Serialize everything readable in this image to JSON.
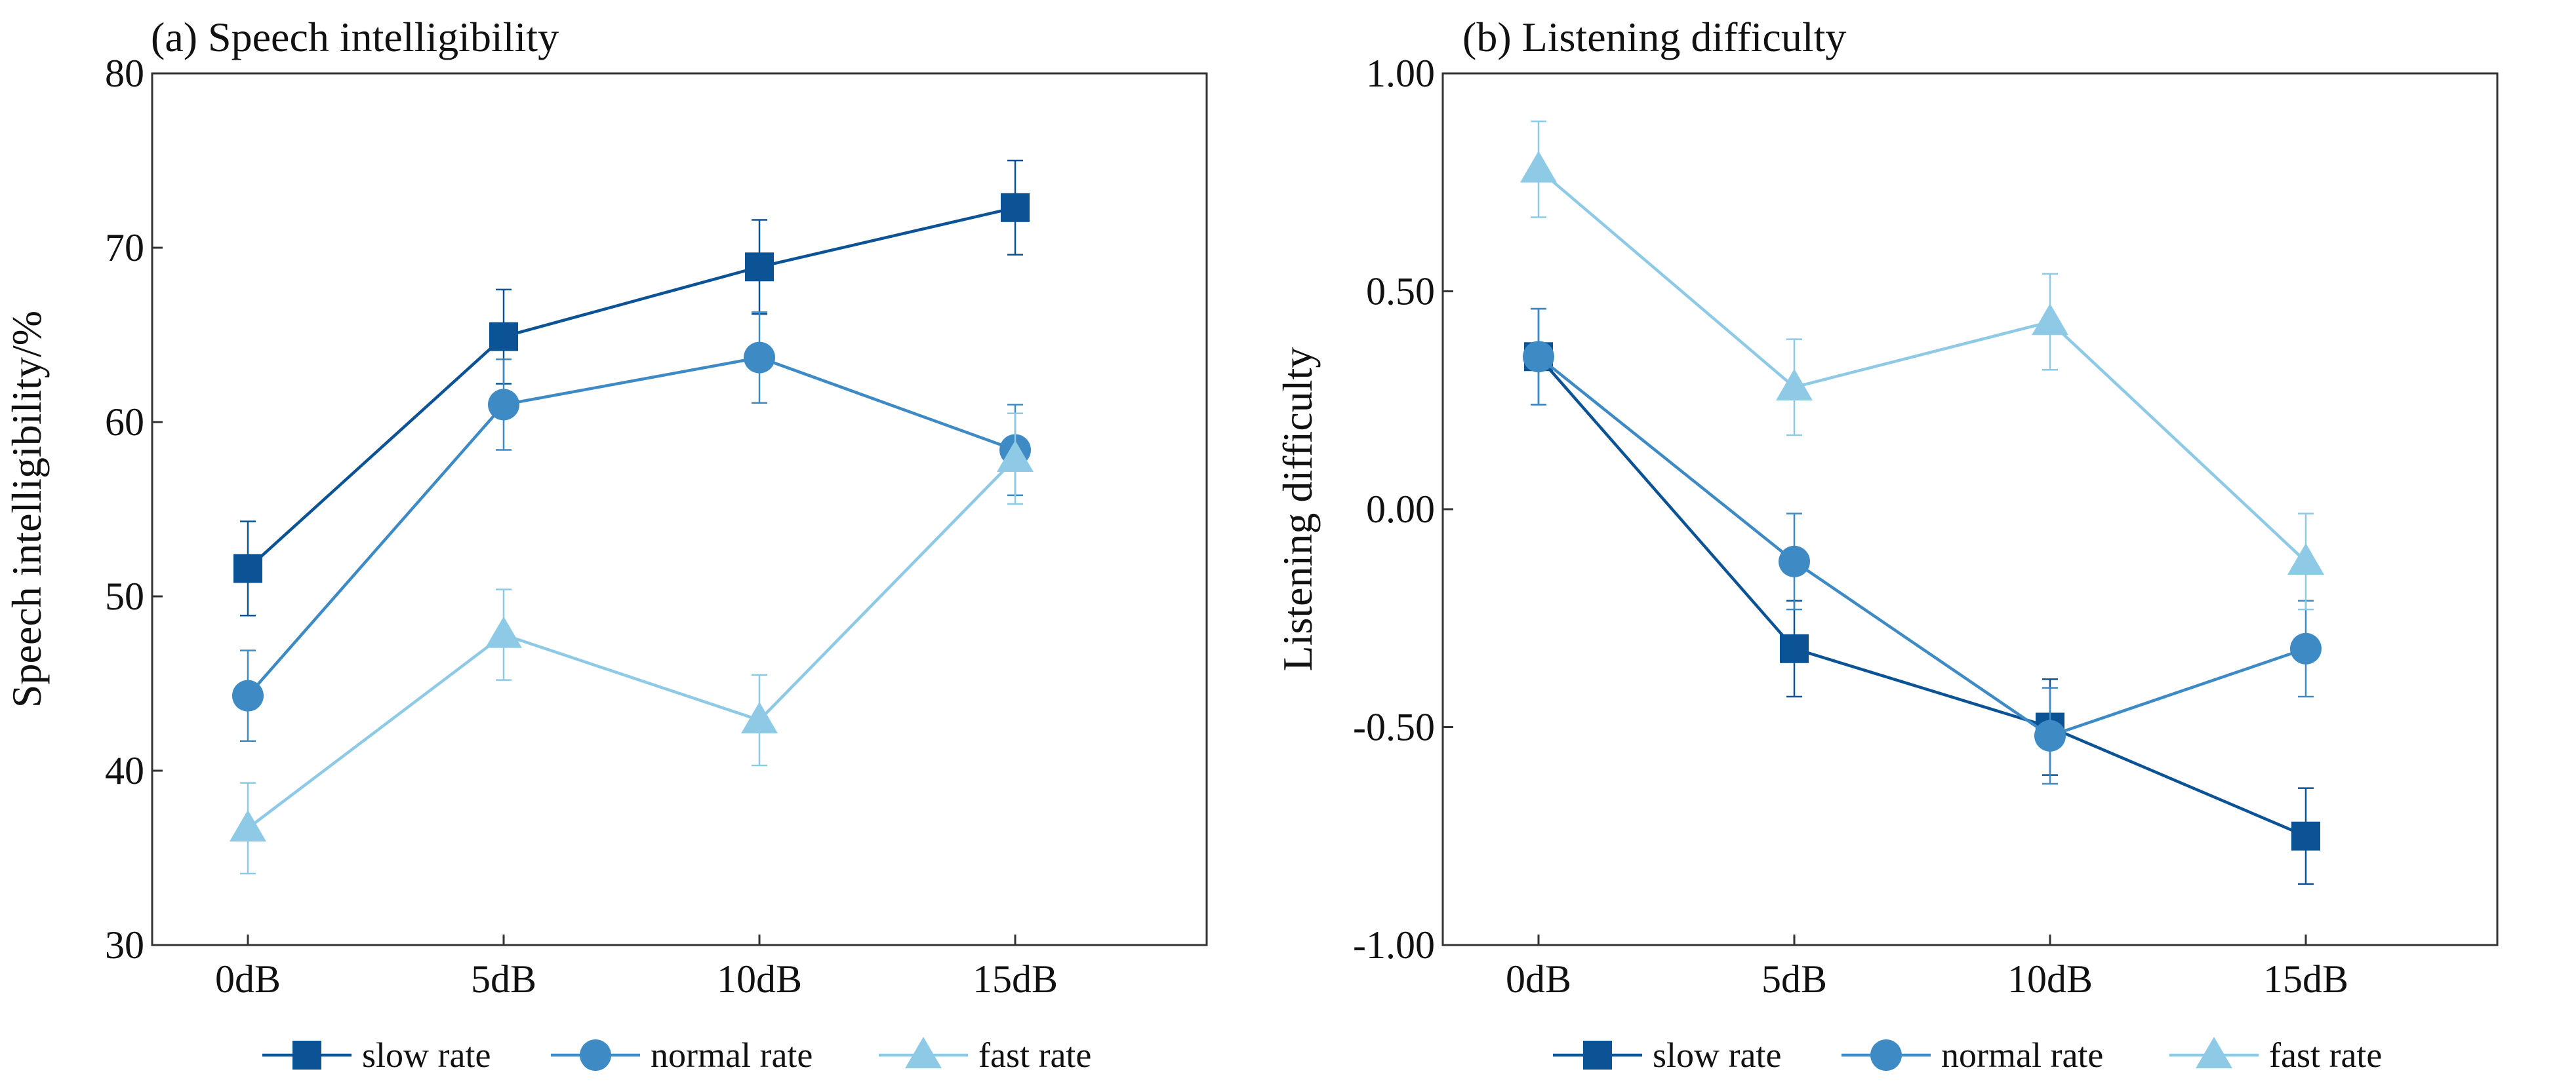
{
  "chart_data": [
    {
      "type": "line",
      "title": "(a) Speech intelligibility",
      "xlabel": "",
      "ylabel": "Speech intelligibility/%",
      "categories": [
        "0dB",
        "5dB",
        "10dB",
        "15dB"
      ],
      "ylim": [
        30,
        80
      ],
      "yticks": [
        30,
        40,
        50,
        60,
        70,
        80
      ],
      "ytick_labels": [
        "30",
        "40",
        "50",
        "60",
        "70",
        "80"
      ],
      "grid": false,
      "legend_position": "bottom",
      "series": [
        {
          "name": "slow rate",
          "marker": "square",
          "color": "#0b5394",
          "values": [
            51.6,
            64.9,
            68.9,
            72.3
          ],
          "errors": [
            2.7,
            2.7,
            2.7,
            2.7
          ]
        },
        {
          "name": "normal rate",
          "marker": "circle",
          "color": "#3d8ac4",
          "values": [
            44.3,
            61.0,
            63.7,
            58.4
          ],
          "errors": [
            2.6,
            2.6,
            2.6,
            2.6
          ]
        },
        {
          "name": "fast rate",
          "marker": "triangle",
          "color": "#8ecae6",
          "values": [
            36.7,
            47.8,
            42.9,
            57.9
          ],
          "errors": [
            2.6,
            2.6,
            2.6,
            2.6
          ]
        }
      ]
    },
    {
      "type": "line",
      "title": "(b) Listening difficulty",
      "xlabel": "",
      "ylabel": "Listening difficulty",
      "categories": [
        "0dB",
        "5dB",
        "10dB",
        "15dB"
      ],
      "ylim": [
        -1.0,
        1.0
      ],
      "yticks": [
        -1.0,
        -0.5,
        0.0,
        0.5,
        1.0
      ],
      "ytick_labels": [
        "-1.00",
        "-0.50",
        "0.00",
        "0.50",
        "1.00"
      ],
      "grid": false,
      "legend_position": "bottom",
      "series": [
        {
          "name": "slow rate",
          "marker": "square",
          "color": "#0b5394",
          "values": [
            0.35,
            -0.32,
            -0.5,
            -0.75
          ],
          "errors": [
            0.11,
            0.11,
            0.11,
            0.11
          ]
        },
        {
          "name": "normal rate",
          "marker": "circle",
          "color": "#3d8ac4",
          "values": [
            0.35,
            -0.12,
            -0.52,
            -0.32
          ],
          "errors": [
            0.11,
            0.11,
            0.11,
            0.11
          ]
        },
        {
          "name": "fast rate",
          "marker": "triangle",
          "color": "#8ecae6",
          "values": [
            0.78,
            0.28,
            0.43,
            -0.12
          ],
          "errors": [
            0.11,
            0.11,
            0.11,
            0.11
          ]
        }
      ]
    }
  ]
}
